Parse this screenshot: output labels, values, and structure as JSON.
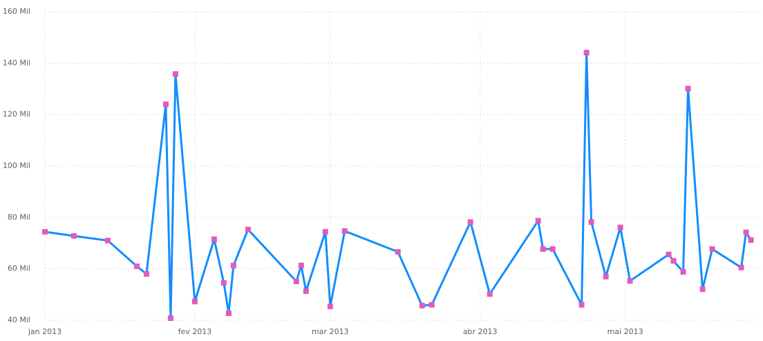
{
  "chart_data": {
    "type": "line",
    "x": [
      0,
      6,
      13,
      19,
      21,
      25,
      26,
      27,
      31,
      35,
      37,
      38,
      39,
      42,
      52,
      53,
      54,
      58,
      59,
      62,
      73,
      78,
      80,
      88,
      92,
      102,
      103,
      105,
      111,
      112,
      113,
      116,
      119,
      121,
      129,
      130,
      132,
      133,
      136,
      138,
      144,
      145,
      146
    ],
    "values": [
      74.4,
      72.8,
      71.0,
      61.0,
      58.0,
      124.0,
      40.8,
      135.8,
      47.3,
      71.5,
      54.5,
      42.7,
      61.3,
      75.3,
      55.1,
      61.3,
      51.3,
      74.4,
      45.4,
      74.7,
      66.6,
      45.7,
      46.0,
      78.2,
      50.2,
      78.7,
      67.7,
      67.7,
      46.0,
      144.1,
      78.2,
      57.0,
      76.1,
      55.3,
      65.6,
      63.1,
      58.8,
      130.1,
      52.1,
      67.7,
      60.5,
      74.2,
      71.2
    ],
    "line_color": "#118dff",
    "marker_color": "#e15bbd",
    "xlim": [
      0,
      146.5
    ],
    "xticks": [
      {
        "value": 0,
        "label": "jan 2013"
      },
      {
        "value": 31,
        "label": "fev 2013"
      },
      {
        "value": 59,
        "label": "mar 2013"
      },
      {
        "value": 90,
        "label": "abr 2013"
      },
      {
        "value": 120,
        "label": "mai 2013"
      }
    ],
    "ylim": [
      40,
      160
    ],
    "yticks": [
      {
        "value": 40,
        "label": "40 Mil"
      },
      {
        "value": 60,
        "label": "60 Mil"
      },
      {
        "value": 80,
        "label": "80 Mil"
      },
      {
        "value": 100,
        "label": "100 Mil"
      },
      {
        "value": 120,
        "label": "120 Mil"
      },
      {
        "value": 140,
        "label": "140 Mil"
      },
      {
        "value": 160,
        "label": "160 Mil"
      }
    ],
    "grid": true
  }
}
